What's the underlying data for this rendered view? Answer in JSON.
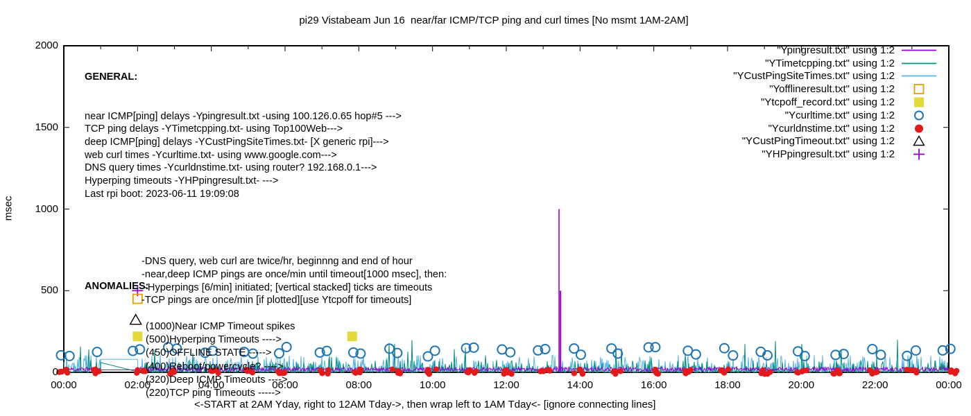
{
  "chart_data": {
    "type": "line",
    "title": "pi29 Vistabeam Jun 16  near/far ICMP/TCP ping and curl times [No msmt 1AM-2AM]",
    "ylabel": "msec",
    "xlabel": "<-START at 2AM Yday, right to 12AM Tday->, then wrap left to 1AM Tday<- [ignore connecting lines]",
    "ylim": [
      0,
      2000
    ],
    "xlim_hours": [
      0,
      24
    ],
    "y_ticks": [
      0,
      500,
      1000,
      1500,
      2000
    ],
    "x_ticks": [
      "00:00",
      "02:00",
      "04:00",
      "06:00",
      "08:00",
      "10:00",
      "12:00",
      "14:00",
      "16:00",
      "18:00",
      "20:00",
      "22:00",
      "00:00"
    ],
    "x_minor_tick_hours": 1,
    "grid": false,
    "legend_position": "top-right",
    "measurement_gap": {
      "start_hour": 1,
      "end_hour": 2,
      "note": "No msmt 1AM-2AM",
      "connect_levels_msec": {
        "near_icmp": [
          15,
          15
        ],
        "tcp_ping": [
          60,
          4
        ],
        "deep_icmp": [
          80,
          80
        ]
      }
    },
    "series": [
      {
        "name": "\"Ypingresult.txt\" using 1:2",
        "key": "near_icmp",
        "style": "line",
        "color": "#9400d3",
        "noise": {
          "seed": 11,
          "min": 5,
          "max": 32
        },
        "spikes": [
          {
            "hour": 13.43,
            "msec": 1000
          }
        ]
      },
      {
        "name": "\"YTimetcpping.txt\" using 1:2",
        "key": "tcp_ping",
        "style": "line",
        "color": "#00907a",
        "noise": {
          "seed": 22,
          "min": 0,
          "max": 75,
          "spike_prob": 0.013,
          "spike_max": 200
        }
      },
      {
        "name": "\"YCustPingSiteTimes.txt\" using 1:2",
        "key": "deep_icmp",
        "style": "line",
        "color": "#58b4e6",
        "noise": {
          "seed": 33,
          "min": 0,
          "max": 105
        }
      },
      {
        "name": "\"Yofflineresult.txt\" using 1:2",
        "key": "offline",
        "style": "open-square",
        "color": "#e69f00",
        "points": []
      },
      {
        "name": "\"Ytcpoff_record.txt\" using 1:2",
        "key": "tcpoff",
        "style": "filled-square",
        "color": "#e3d93a",
        "points": [
          {
            "hour": 7.82,
            "msec": 220
          }
        ]
      },
      {
        "name": "\"Ycurltime.txt\" using 1:2",
        "key": "curl",
        "style": "open-circle",
        "color": "#1c74b4",
        "rule": {
          "period_hours": 1,
          "pairs": true,
          "seed": 44,
          "msec_min": 95,
          "msec_max": 155
        }
      },
      {
        "name": "\"Ycurldnstime.txt\" using 1:2",
        "key": "dns",
        "style": "filled-circle",
        "color": "#e21a1c",
        "rule": {
          "period_hours": 1,
          "cluster_size": 5,
          "seed": 55,
          "msec_center": 4
        }
      },
      {
        "name": "\"YCustPingTimeout.txt\" using 1:2",
        "key": "deep_timeout",
        "style": "open-triangle",
        "color": "#000000",
        "points": []
      },
      {
        "name": "\"YHPpingresult.txt\" using 1:2",
        "key": "hyperping",
        "style": "plus",
        "color": "#9400d3",
        "timeout_stacks": [
          {
            "hour": 13.47,
            "top_msec": 500
          }
        ]
      }
    ],
    "anomaly_markers": [
      {
        "style": "plus",
        "color": "#9400d3",
        "hour": 2.0,
        "msec": 500
      },
      {
        "style": "open-square",
        "color": "#e69f00",
        "hour": 2.0,
        "msec": 450
      },
      {
        "style": "open-triangle",
        "color": "#000000",
        "hour": 1.95,
        "msec": 320
      },
      {
        "style": "filled-square",
        "color": "#e3d93a",
        "hour": 2.0,
        "msec": 220
      }
    ]
  },
  "annotations": {
    "general": {
      "heading": "GENERAL:",
      "lines": [
        "near ICMP[ping] delays -Ypingresult.txt -using 100.126.0.65 hop#5 --->",
        "TCP ping delays -YTimetcpping.txt- using Top100Web--->",
        "deep ICMP[ping] delays -YCustPingSiteTimes.txt- [X generic rpi]--->",
        "web curl times -Ycurltime.txt- using www.google.com--->",
        "DNS query times -Ycurldnstime.txt- using router? 192.168.0.1--->",
        "Hyperping timeouts -YHPpingresult.txt- --->",
        "Last rpi boot: 2023-06-11 19:09:08"
      ],
      "indented_lines": [
        "-DNS query, web curl are twice/hr, beginnng and end of hour",
        "-near,deep ICMP pings are once/min until timeout[1000 msec], then:",
        " -Hyperpings [6/min] initiated; [vertical stacked] ticks are timeouts",
        "-TCP pings are once/min [if plotted][use Ytcpoff for timeouts]"
      ]
    },
    "anomalies": {
      "heading": "ANOMALIES:",
      "lines": [
        "(1000)Near ICMP Timeout spikes",
        "(500)Hyperping Timeouts ---->",
        "(450)OFFLINE STATE ----->",
        "(400)Reboot/powercycle? ---->",
        "(320)Deep ICMP Timeouts ---->",
        "(220)TCP ping Timeouts ----->"
      ]
    }
  },
  "colors": {
    "background": "#ffffff",
    "axis": "#000000",
    "text": "#000000"
  }
}
